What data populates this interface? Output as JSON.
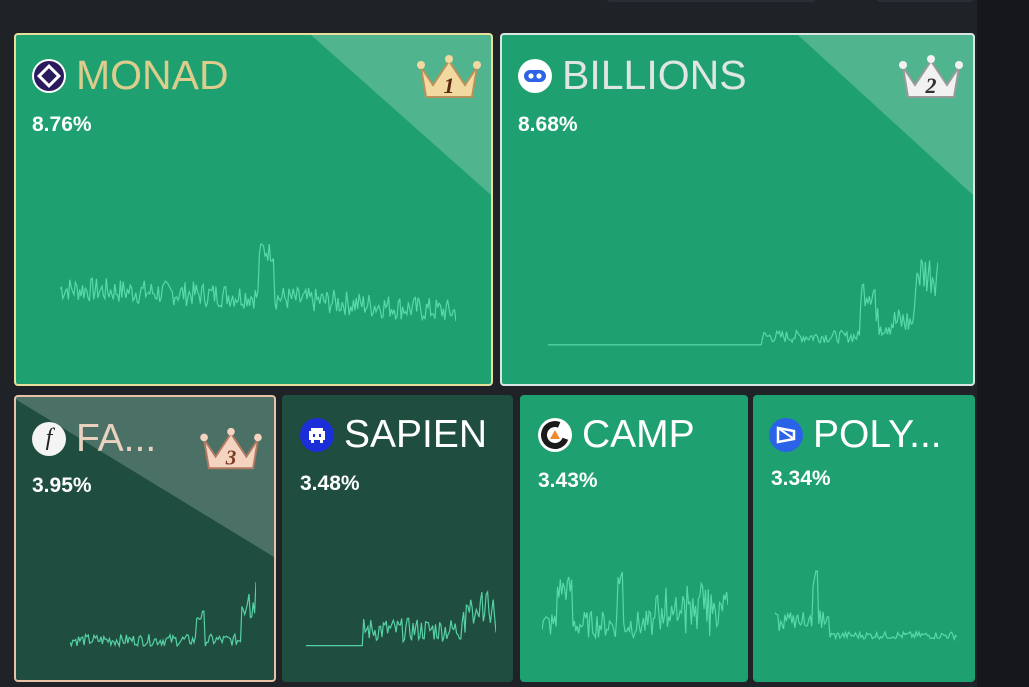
{
  "tiles": [
    {
      "id": "monad",
      "name": "MONAD",
      "pct": "8.76%",
      "rank": "1",
      "icon": "monad-logo-icon"
    },
    {
      "id": "billions",
      "name": "BILLIONS",
      "pct": "8.68%",
      "rank": "2",
      "icon": "billions-logo-icon"
    },
    {
      "id": "fa",
      "name": "FA...",
      "pct": "3.95%",
      "rank": "3",
      "icon": "fa-logo-icon"
    },
    {
      "id": "sapien",
      "name": "SAPIEN",
      "pct": "3.48%",
      "icon": "sapien-logo-icon"
    },
    {
      "id": "camp",
      "name": "CAMP",
      "pct": "3.43%",
      "icon": "camp-logo-icon"
    },
    {
      "id": "poly",
      "name": "POLY...",
      "pct": "3.34%",
      "icon": "poly-logo-icon"
    }
  ],
  "colors": {
    "tile_green": "#1fa070",
    "tile_dark_green": "#1f4d40",
    "gold": "#e8df9a",
    "silver": "#d9e6e2",
    "bronze": "#e9c2a8",
    "spark": "#5ce0b0"
  }
}
